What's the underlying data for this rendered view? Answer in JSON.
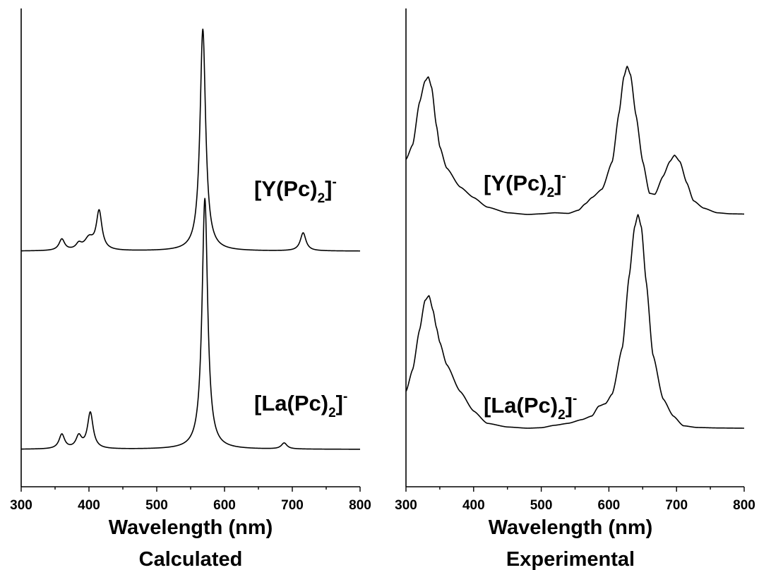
{
  "chart_data": [
    {
      "type": "line",
      "caption": "Calculated",
      "xlabel": "Wavelength (nm)",
      "ylabel": "",
      "xlim": [
        300,
        800
      ],
      "xticks": [
        "300",
        "400",
        "500",
        "600",
        "700",
        "800"
      ],
      "y_ticks_shown": false,
      "grid": false,
      "series": [
        {
          "name_parts": {
            "pre": "[Y(Pc)",
            "sub": "2",
            "mid": "]",
            "sup": "-"
          },
          "baseline": 0,
          "peaks": [
            {
              "center": 360,
              "height": 0.05,
              "width": 5
            },
            {
              "center": 385,
              "height": 0.025,
              "width": 5
            },
            {
              "center": 400,
              "height": 0.05,
              "width": 8
            },
            {
              "center": 415,
              "height": 0.17,
              "width": 5
            },
            {
              "center": 568,
              "height": 0.98,
              "width": 5
            },
            {
              "center": 716,
              "height": 0.08,
              "width": 5
            }
          ]
        },
        {
          "name_parts": {
            "pre": "[La(Pc)",
            "sub": "2",
            "mid": "]",
            "sup": "-"
          },
          "baseline": 0,
          "peaks": [
            {
              "center": 360,
              "height": 0.06,
              "width": 5
            },
            {
              "center": 385,
              "height": 0.05,
              "width": 5
            },
            {
              "center": 402,
              "height": 0.15,
              "width": 5
            },
            {
              "center": 571,
              "height": 1.04,
              "width": 5
            },
            {
              "center": 688,
              "height": 0.025,
              "width": 5
            }
          ]
        }
      ]
    },
    {
      "type": "line",
      "caption": "Experimental",
      "xlabel": "Wavelength (nm)",
      "ylabel": "",
      "xlim": [
        300,
        800
      ],
      "xticks": [
        "300",
        "400",
        "500",
        "600",
        "700",
        "800"
      ],
      "y_ticks_shown": false,
      "grid": false,
      "series": [
        {
          "name_parts": {
            "pre": "[Y(Pc)",
            "sub": "2",
            "mid": "]",
            "sup": "-"
          },
          "points": [
            [
              300,
              0.26
            ],
            [
              310,
              0.33
            ],
            [
              320,
              0.53
            ],
            [
              328,
              0.63
            ],
            [
              333,
              0.65
            ],
            [
              338,
              0.6
            ],
            [
              345,
              0.42
            ],
            [
              350,
              0.32
            ],
            [
              360,
              0.22
            ],
            [
              380,
              0.13
            ],
            [
              400,
              0.08
            ],
            [
              420,
              0.035
            ],
            [
              450,
              0.008
            ],
            [
              480,
              0.0
            ],
            [
              500,
              0.003
            ],
            [
              520,
              0.008
            ],
            [
              540,
              0.005
            ],
            [
              555,
              0.02
            ],
            [
              565,
              0.05
            ],
            [
              575,
              0.08
            ],
            [
              590,
              0.12
            ],
            [
              605,
              0.25
            ],
            [
              615,
              0.48
            ],
            [
              622,
              0.65
            ],
            [
              627,
              0.7
            ],
            [
              632,
              0.66
            ],
            [
              640,
              0.47
            ],
            [
              650,
              0.25
            ],
            [
              660,
              0.1
            ],
            [
              668,
              0.095
            ],
            [
              680,
              0.18
            ],
            [
              690,
              0.25
            ],
            [
              697,
              0.28
            ],
            [
              705,
              0.25
            ],
            [
              715,
              0.15
            ],
            [
              725,
              0.065
            ],
            [
              740,
              0.03
            ],
            [
              760,
              0.008
            ],
            [
              780,
              0.003
            ],
            [
              800,
              0.002
            ]
          ]
        },
        {
          "name_parts": {
            "pre": "[La(Pc)",
            "sub": "2",
            "mid": "]",
            "sup": "-"
          },
          "points": [
            [
              300,
              0.15
            ],
            [
              310,
              0.24
            ],
            [
              320,
              0.4
            ],
            [
              328,
              0.52
            ],
            [
              334,
              0.54
            ],
            [
              340,
              0.48
            ],
            [
              345,
              0.41
            ],
            [
              350,
              0.35
            ],
            [
              360,
              0.26
            ],
            [
              380,
              0.15
            ],
            [
              400,
              0.07
            ],
            [
              420,
              0.02
            ],
            [
              450,
              0.005
            ],
            [
              480,
              0.0
            ],
            [
              500,
              0.002
            ],
            [
              520,
              0.012
            ],
            [
              540,
              0.02
            ],
            [
              560,
              0.035
            ],
            [
              575,
              0.05
            ],
            [
              585,
              0.09
            ],
            [
              595,
              0.1
            ],
            [
              605,
              0.14
            ],
            [
              620,
              0.33
            ],
            [
              630,
              0.62
            ],
            [
              638,
              0.82
            ],
            [
              643,
              0.87
            ],
            [
              648,
              0.82
            ],
            [
              655,
              0.6
            ],
            [
              665,
              0.3
            ],
            [
              680,
              0.12
            ],
            [
              695,
              0.05
            ],
            [
              710,
              0.01
            ],
            [
              730,
              0.003
            ],
            [
              760,
              0.001
            ],
            [
              800,
              0.0
            ]
          ]
        }
      ]
    }
  ]
}
